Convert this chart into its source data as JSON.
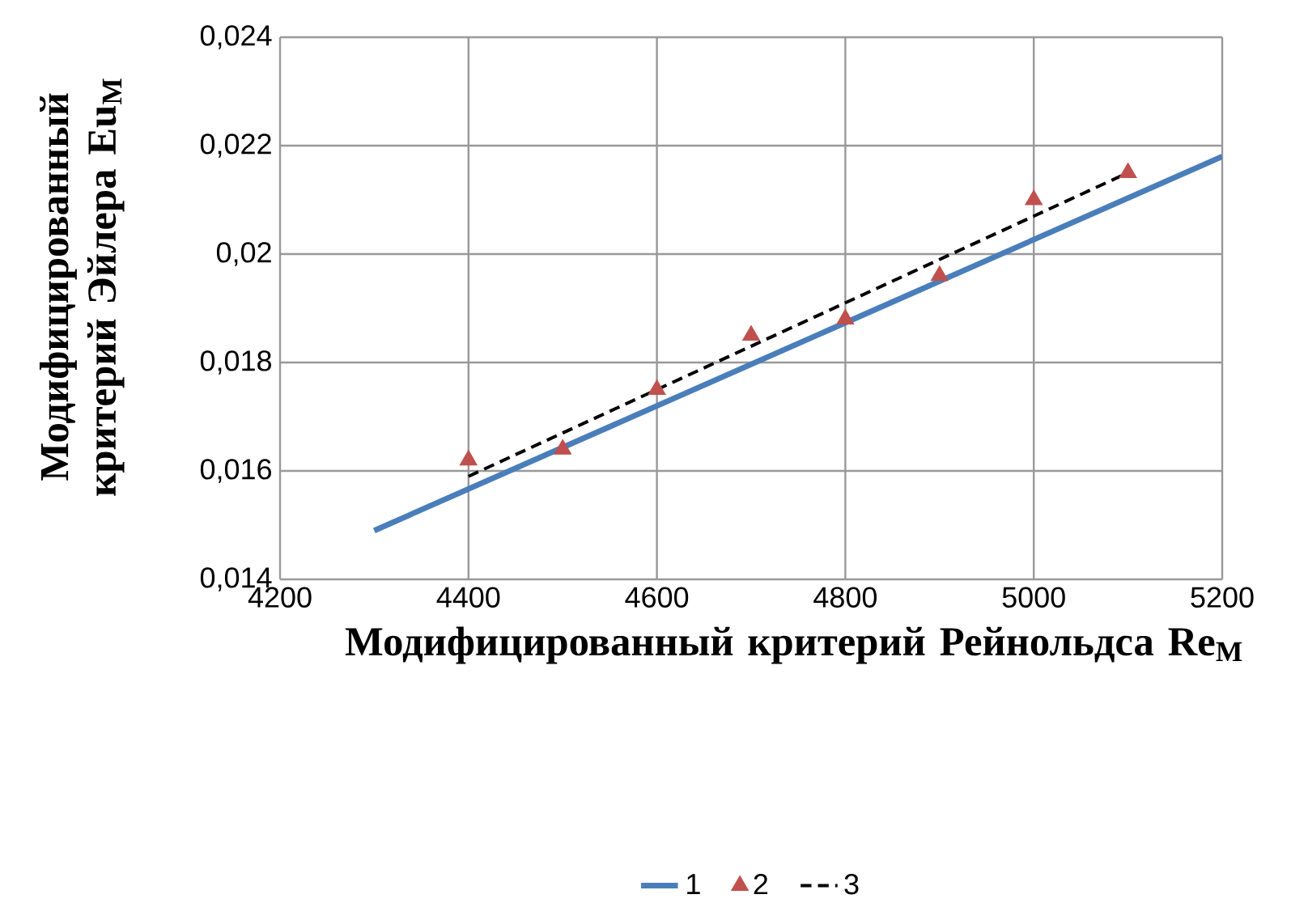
{
  "chart_data": {
    "type": "line",
    "xlabel": "Модифицированный критерий Рейнольдса Re$_{М}$",
    "ylabel": "Модифицированный критерий Эйлера Eu$_{М}$",
    "xlim": [
      4200,
      5200
    ],
    "xticks": [
      4200,
      4400,
      4600,
      4800,
      5000,
      5200
    ],
    "ylim": [
      0.014,
      0.024
    ],
    "yticks": [
      {
        "value": 0.014,
        "label": "0,014"
      },
      {
        "value": 0.016,
        "label": "0,016"
      },
      {
        "value": 0.018,
        "label": "0,018"
      },
      {
        "value": 0.02,
        "label": "0,02"
      },
      {
        "value": 0.022,
        "label": "0,022"
      },
      {
        "value": 0.024,
        "label": "0,024"
      }
    ],
    "grid": true,
    "legend": "bottom",
    "series": [
      {
        "name": "1",
        "color": "#4a7ebb",
        "marker": "none",
        "line_style": "solid",
        "x": [
          4300,
          5200
        ],
        "values": [
          0.0149,
          0.0218
        ]
      },
      {
        "name": "2",
        "type": "scatter",
        "color": "#c0504d",
        "marker": "triangle",
        "x": [
          4400,
          4500,
          4600,
          4700,
          4800,
          4900,
          5000,
          5100
        ],
        "values": [
          0.0162,
          0.0164,
          0.0175,
          0.0185,
          0.0188,
          0.0196,
          0.021,
          0.0215
        ]
      },
      {
        "name": "3",
        "color": "#000000",
        "marker": "none",
        "line_style": "dashed",
        "x": [
          4400,
          5100
        ],
        "values": [
          0.0159,
          0.0215
        ]
      }
    ]
  }
}
